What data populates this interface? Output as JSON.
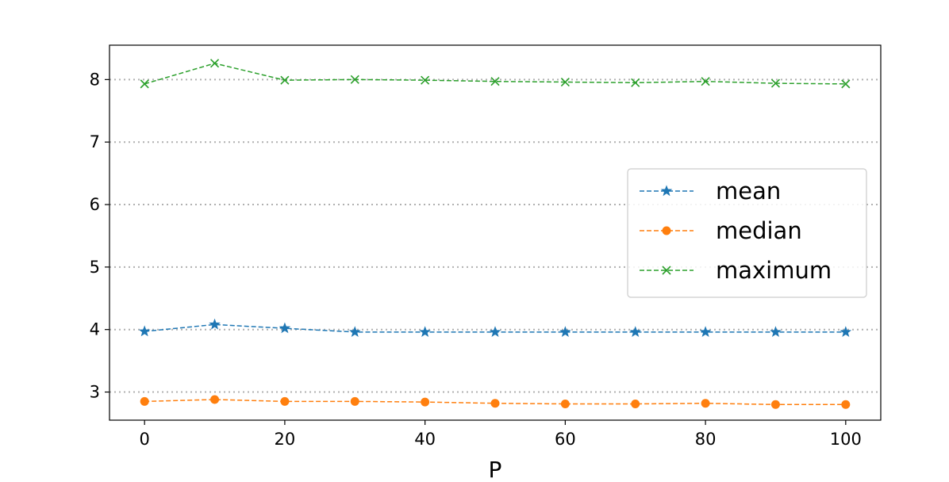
{
  "chart_data": {
    "type": "line",
    "title": "",
    "xlabel": "P",
    "ylabel": "",
    "x": [
      0,
      10,
      20,
      30,
      40,
      50,
      60,
      70,
      80,
      90,
      100
    ],
    "xlim": [
      -5,
      105
    ],
    "ylim": [
      2.55,
      8.55
    ],
    "xticks": [
      0,
      20,
      40,
      60,
      80,
      100
    ],
    "yticks": [
      3,
      4,
      5,
      6,
      7,
      8
    ],
    "grid": "horizontal dotted",
    "legend_position": "center-right",
    "series": [
      {
        "name": "mean",
        "marker": "star",
        "color": "#1f77b4",
        "values": [
          3.97,
          4.08,
          4.02,
          3.96,
          3.96,
          3.96,
          3.96,
          3.96,
          3.96,
          3.96,
          3.96
        ]
      },
      {
        "name": "median",
        "marker": "circle",
        "color": "#ff7f0e",
        "values": [
          2.85,
          2.88,
          2.85,
          2.85,
          2.84,
          2.82,
          2.81,
          2.81,
          2.82,
          2.8,
          2.8
        ]
      },
      {
        "name": "maximum",
        "marker": "x",
        "color": "#2ca02c",
        "values": [
          7.93,
          8.26,
          7.99,
          8.0,
          7.99,
          7.97,
          7.96,
          7.95,
          7.97,
          7.94,
          7.93
        ]
      }
    ]
  }
}
